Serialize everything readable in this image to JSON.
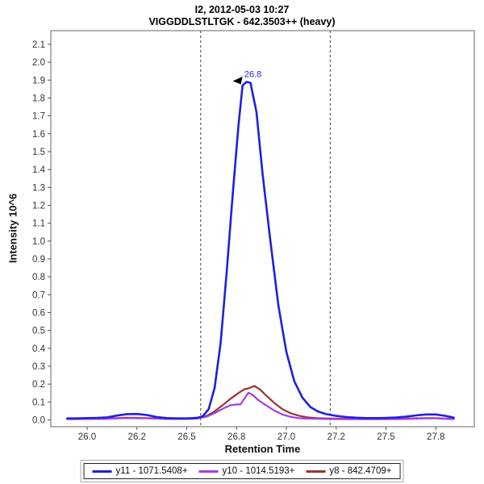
{
  "chart_data": {
    "type": "line",
    "title": "I2, 2012-05-03 10:27",
    "subtitle": "VIGGDDLSTLTGK - 642.3503++ (heavy)",
    "xlabel": "Retention Time",
    "ylabel": "Intensity 10^6",
    "xlim": [
      25.81,
      28.03
    ],
    "ylim": [
      0,
      2.17
    ],
    "grid": false,
    "legend_position": "bottom",
    "x_tick_values": [
      26.0,
      26.25,
      26.5,
      26.75,
      27.0,
      27.25,
      27.5,
      27.75
    ],
    "x_tick_labels": [
      "26.0",
      "26.2",
      "26.5",
      "26.8",
      "27.0",
      "27.2",
      "27.5",
      "27.8"
    ],
    "y_tick_values": [
      0.0,
      0.1,
      0.2,
      0.3,
      0.4,
      0.5,
      0.6,
      0.7,
      0.8,
      0.9,
      1.0,
      1.1,
      1.2,
      1.3,
      1.4,
      1.5,
      1.6,
      1.7,
      1.8,
      1.9,
      2.0,
      2.1
    ],
    "y_tick_labels": [
      "0.0",
      "0.1",
      "0.2",
      "0.3",
      "0.4",
      "0.5",
      "0.6",
      "0.7",
      "0.8",
      "0.9",
      "1.0",
      "1.1",
      "1.2",
      "1.3",
      "1.4",
      "1.5",
      "1.6",
      "1.7",
      "1.8",
      "1.9",
      "2.0",
      "2.1"
    ],
    "integration_boundaries": [
      26.57,
      27.22
    ],
    "boundary_color": "#3d3d3d",
    "peak_annotation": {
      "text": "26.8",
      "x": 26.8,
      "y": 1.89,
      "color": "#1f1fe0"
    },
    "series": [
      {
        "name": "y11 - 1071.5408+",
        "color": "#1f1fe0",
        "width": 2.6,
        "points": [
          [
            25.9,
            0.008
          ],
          [
            25.95,
            0.008
          ],
          [
            26.0,
            0.01
          ],
          [
            26.05,
            0.011
          ],
          [
            26.1,
            0.014
          ],
          [
            26.15,
            0.024
          ],
          [
            26.2,
            0.032
          ],
          [
            26.25,
            0.033
          ],
          [
            26.3,
            0.027
          ],
          [
            26.35,
            0.016
          ],
          [
            26.4,
            0.01
          ],
          [
            26.45,
            0.008
          ],
          [
            26.5,
            0.008
          ],
          [
            26.55,
            0.011
          ],
          [
            26.58,
            0.02
          ],
          [
            26.61,
            0.06
          ],
          [
            26.64,
            0.18
          ],
          [
            26.67,
            0.43
          ],
          [
            26.7,
            0.82
          ],
          [
            26.73,
            1.25
          ],
          [
            26.76,
            1.65
          ],
          [
            26.78,
            1.87
          ],
          [
            26.8,
            1.89
          ],
          [
            26.82,
            1.885
          ],
          [
            26.85,
            1.72
          ],
          [
            26.88,
            1.38
          ],
          [
            26.92,
            1.0
          ],
          [
            26.96,
            0.64
          ],
          [
            27.0,
            0.38
          ],
          [
            27.04,
            0.215
          ],
          [
            27.08,
            0.125
          ],
          [
            27.12,
            0.072
          ],
          [
            27.16,
            0.046
          ],
          [
            27.2,
            0.032
          ],
          [
            27.25,
            0.022
          ],
          [
            27.3,
            0.016
          ],
          [
            27.35,
            0.012
          ],
          [
            27.4,
            0.01
          ],
          [
            27.45,
            0.01
          ],
          [
            27.5,
            0.011
          ],
          [
            27.55,
            0.013
          ],
          [
            27.6,
            0.018
          ],
          [
            27.65,
            0.025
          ],
          [
            27.7,
            0.03
          ],
          [
            27.75,
            0.03
          ],
          [
            27.8,
            0.022
          ],
          [
            27.84,
            0.012
          ]
        ]
      },
      {
        "name": "y10 - 1014.5193+",
        "color": "#a43ee0",
        "width": 2.2,
        "points": [
          [
            25.9,
            0.004
          ],
          [
            26.0,
            0.005
          ],
          [
            26.1,
            0.006
          ],
          [
            26.2,
            0.01
          ],
          [
            26.3,
            0.008
          ],
          [
            26.4,
            0.005
          ],
          [
            26.5,
            0.005
          ],
          [
            26.55,
            0.007
          ],
          [
            26.6,
            0.018
          ],
          [
            26.64,
            0.038
          ],
          [
            26.68,
            0.062
          ],
          [
            26.72,
            0.082
          ],
          [
            26.75,
            0.086
          ],
          [
            26.77,
            0.086
          ],
          [
            26.79,
            0.12
          ],
          [
            26.81,
            0.152
          ],
          [
            26.83,
            0.14
          ],
          [
            26.86,
            0.11
          ],
          [
            26.9,
            0.08
          ],
          [
            26.94,
            0.052
          ],
          [
            26.98,
            0.03
          ],
          [
            27.02,
            0.017
          ],
          [
            27.06,
            0.01
          ],
          [
            27.1,
            0.007
          ],
          [
            27.2,
            0.005
          ],
          [
            27.3,
            0.004
          ],
          [
            27.4,
            0.004
          ],
          [
            27.5,
            0.004
          ],
          [
            27.6,
            0.005
          ],
          [
            27.7,
            0.008
          ],
          [
            27.75,
            0.008
          ],
          [
            27.84,
            0.004
          ]
        ]
      },
      {
        "name": "y8 - 842.4709+",
        "color": "#9a3333",
        "width": 2.2,
        "points": [
          [
            25.9,
            0.005
          ],
          [
            26.0,
            0.006
          ],
          [
            26.1,
            0.007
          ],
          [
            26.2,
            0.012
          ],
          [
            26.3,
            0.01
          ],
          [
            26.4,
            0.006
          ],
          [
            26.5,
            0.006
          ],
          [
            26.55,
            0.008
          ],
          [
            26.6,
            0.022
          ],
          [
            26.64,
            0.048
          ],
          [
            26.68,
            0.082
          ],
          [
            26.72,
            0.118
          ],
          [
            26.76,
            0.15
          ],
          [
            26.79,
            0.172
          ],
          [
            26.81,
            0.176
          ],
          [
            26.84,
            0.19
          ],
          [
            26.87,
            0.168
          ],
          [
            26.9,
            0.135
          ],
          [
            26.94,
            0.094
          ],
          [
            26.98,
            0.06
          ],
          [
            27.02,
            0.038
          ],
          [
            27.06,
            0.024
          ],
          [
            27.1,
            0.015
          ],
          [
            27.15,
            0.01
          ],
          [
            27.2,
            0.008
          ],
          [
            27.3,
            0.006
          ],
          [
            27.4,
            0.006
          ],
          [
            27.5,
            0.006
          ],
          [
            27.6,
            0.007
          ],
          [
            27.7,
            0.01
          ],
          [
            27.75,
            0.01
          ],
          [
            27.84,
            0.005
          ]
        ]
      }
    ]
  }
}
